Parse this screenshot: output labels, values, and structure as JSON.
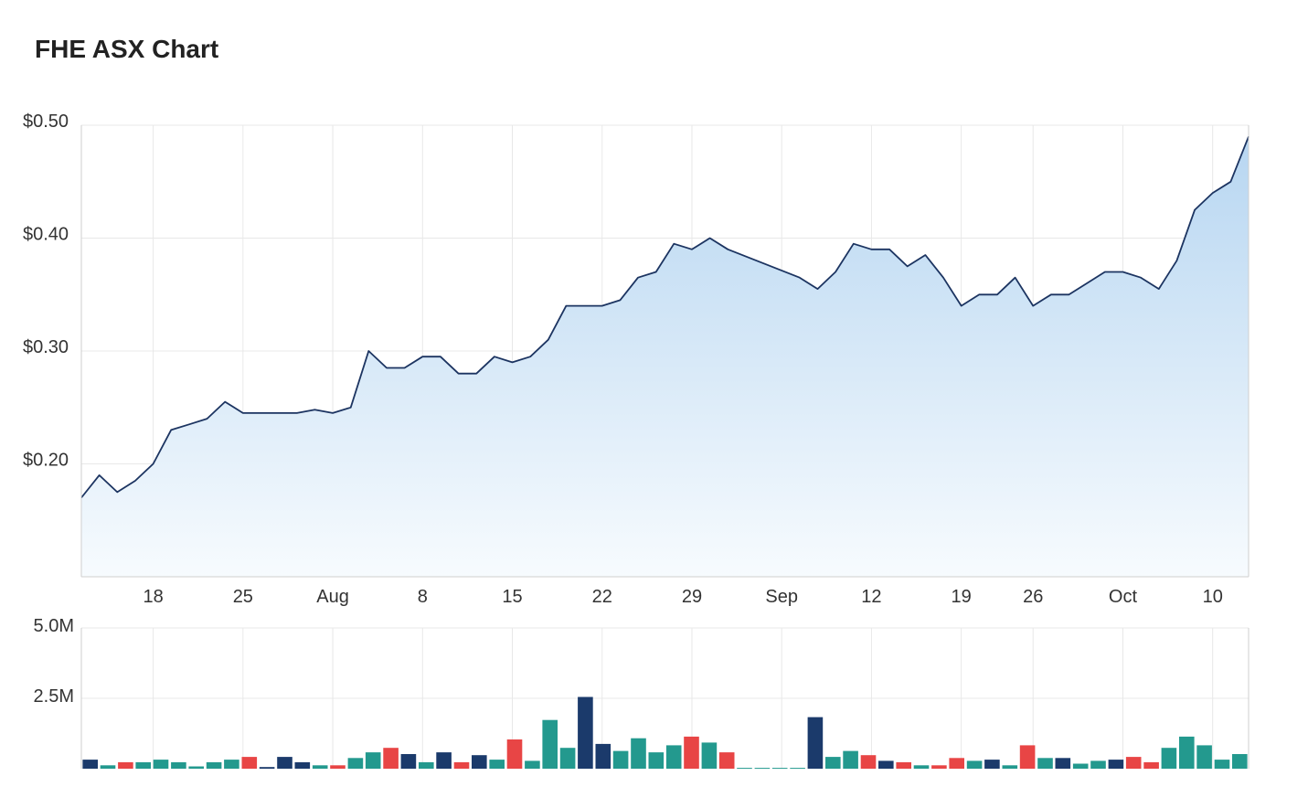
{
  "title": "FHE ASX Chart",
  "colors": {
    "line": "#1c3461",
    "area_top": "#b7d6f1",
    "area_bottom": "#f7fbfe",
    "vol_dark": "#1b3a6b",
    "vol_teal": "#23998e",
    "vol_red": "#e84545"
  },
  "chart_data": [
    {
      "type": "area",
      "price_axis_labels": [
        "$0.50",
        "$0.40",
        "$0.30",
        "$0.20"
      ],
      "price_axis_values": [
        0.5,
        0.4,
        0.3,
        0.2
      ],
      "ylim": [
        0.1,
        0.5
      ],
      "date_ticks": [
        {
          "label": "18",
          "t": 4
        },
        {
          "label": "25",
          "t": 9
        },
        {
          "label": "Aug",
          "t": 14
        },
        {
          "label": "8",
          "t": 19
        },
        {
          "label": "15",
          "t": 24
        },
        {
          "label": "22",
          "t": 29
        },
        {
          "label": "29",
          "t": 34
        },
        {
          "label": "Sep",
          "t": 39
        },
        {
          "label": "12",
          "t": 44
        },
        {
          "label": "19",
          "t": 49
        },
        {
          "label": "26",
          "t": 53
        },
        {
          "label": "Oct",
          "t": 58
        },
        {
          "label": "10",
          "t": 63
        }
      ],
      "x_index_range": [
        0,
        65
      ],
      "price": [
        [
          0,
          0.17
        ],
        [
          1,
          0.19
        ],
        [
          2,
          0.175
        ],
        [
          3,
          0.185
        ],
        [
          4,
          0.2
        ],
        [
          5,
          0.23
        ],
        [
          6,
          0.235
        ],
        [
          7,
          0.24
        ],
        [
          8,
          0.255
        ],
        [
          9,
          0.245
        ],
        [
          10,
          0.245
        ],
        [
          11,
          0.245
        ],
        [
          12,
          0.245
        ],
        [
          13,
          0.248
        ],
        [
          14,
          0.245
        ],
        [
          15,
          0.25
        ],
        [
          16,
          0.3
        ],
        [
          17,
          0.285
        ],
        [
          18,
          0.285
        ],
        [
          19,
          0.295
        ],
        [
          20,
          0.295
        ],
        [
          21,
          0.28
        ],
        [
          22,
          0.28
        ],
        [
          23,
          0.295
        ],
        [
          24,
          0.29
        ],
        [
          25,
          0.295
        ],
        [
          26,
          0.31
        ],
        [
          27,
          0.34
        ],
        [
          28,
          0.34
        ],
        [
          29,
          0.34
        ],
        [
          30,
          0.345
        ],
        [
          31,
          0.365
        ],
        [
          32,
          0.37
        ],
        [
          33,
          0.395
        ],
        [
          34,
          0.39
        ],
        [
          35,
          0.4
        ],
        [
          36,
          0.39
        ],
        [
          40,
          0.365
        ],
        [
          41,
          0.355
        ],
        [
          42,
          0.37
        ],
        [
          43,
          0.395
        ],
        [
          44,
          0.39
        ],
        [
          45,
          0.39
        ],
        [
          46,
          0.375
        ],
        [
          47,
          0.385
        ],
        [
          48,
          0.365
        ],
        [
          49,
          0.34
        ],
        [
          50,
          0.35
        ],
        [
          51,
          0.35
        ],
        [
          52,
          0.365
        ],
        [
          53,
          0.34
        ],
        [
          54,
          0.35
        ],
        [
          55,
          0.35
        ],
        [
          56,
          0.36
        ],
        [
          57,
          0.37
        ],
        [
          58,
          0.37
        ],
        [
          59,
          0.365
        ],
        [
          60,
          0.355
        ],
        [
          61,
          0.38
        ],
        [
          62,
          0.425
        ],
        [
          63,
          0.44
        ],
        [
          64,
          0.45
        ],
        [
          65,
          0.49
        ]
      ]
    },
    {
      "type": "bar",
      "volume_axis_labels": [
        "5.0M",
        "2.5M"
      ],
      "volume_axis_values": [
        5000000,
        2500000
      ],
      "ylim": [
        0,
        5000000
      ],
      "volume": [
        [
          0,
          320000,
          "dark"
        ],
        [
          1,
          120000,
          "teal"
        ],
        [
          2,
          230000,
          "red"
        ],
        [
          3,
          230000,
          "teal"
        ],
        [
          4,
          320000,
          "teal"
        ],
        [
          5,
          230000,
          "teal"
        ],
        [
          6,
          80000,
          "teal"
        ],
        [
          7,
          230000,
          "teal"
        ],
        [
          8,
          320000,
          "teal"
        ],
        [
          9,
          420000,
          "red"
        ],
        [
          10,
          60000,
          "dark"
        ],
        [
          11,
          420000,
          "dark"
        ],
        [
          12,
          230000,
          "dark"
        ],
        [
          13,
          120000,
          "teal"
        ],
        [
          14,
          120000,
          "red"
        ],
        [
          15,
          380000,
          "teal"
        ],
        [
          16,
          580000,
          "teal"
        ],
        [
          17,
          740000,
          "red"
        ],
        [
          18,
          520000,
          "dark"
        ],
        [
          19,
          230000,
          "teal"
        ],
        [
          20,
          580000,
          "dark"
        ],
        [
          21,
          230000,
          "red"
        ],
        [
          22,
          480000,
          "dark"
        ],
        [
          23,
          320000,
          "teal"
        ],
        [
          24,
          1040000,
          "red"
        ],
        [
          25,
          280000,
          "teal"
        ],
        [
          26,
          1730000,
          "teal"
        ],
        [
          27,
          740000,
          "teal"
        ],
        [
          28,
          2550000,
          "dark"
        ],
        [
          29,
          880000,
          "dark"
        ],
        [
          30,
          630000,
          "teal"
        ],
        [
          31,
          1080000,
          "teal"
        ],
        [
          32,
          580000,
          "teal"
        ],
        [
          33,
          830000,
          "teal"
        ],
        [
          34,
          1140000,
          "red"
        ],
        [
          35,
          930000,
          "teal"
        ],
        [
          36,
          580000,
          "red"
        ],
        [
          37,
          30000,
          "teal"
        ],
        [
          38,
          30000,
          "teal"
        ],
        [
          39,
          30000,
          "teal"
        ],
        [
          40,
          30000,
          "teal"
        ],
        [
          41,
          1830000,
          "dark"
        ],
        [
          42,
          420000,
          "teal"
        ],
        [
          43,
          630000,
          "teal"
        ],
        [
          44,
          480000,
          "red"
        ],
        [
          45,
          280000,
          "dark"
        ],
        [
          46,
          230000,
          "red"
        ],
        [
          47,
          120000,
          "teal"
        ],
        [
          48,
          120000,
          "red"
        ],
        [
          49,
          380000,
          "red"
        ],
        [
          50,
          280000,
          "teal"
        ],
        [
          51,
          320000,
          "dark"
        ],
        [
          52,
          120000,
          "teal"
        ],
        [
          53,
          830000,
          "red"
        ],
        [
          54,
          380000,
          "teal"
        ],
        [
          55,
          380000,
          "dark"
        ],
        [
          56,
          180000,
          "teal"
        ],
        [
          57,
          280000,
          "teal"
        ],
        [
          58,
          320000,
          "dark"
        ],
        [
          59,
          420000,
          "red"
        ],
        [
          60,
          230000,
          "red"
        ],
        [
          61,
          740000,
          "teal"
        ],
        [
          62,
          1140000,
          "teal"
        ],
        [
          63,
          830000,
          "teal"
        ],
        [
          64,
          320000,
          "teal"
        ],
        [
          65,
          520000,
          "teal"
        ]
      ]
    }
  ]
}
